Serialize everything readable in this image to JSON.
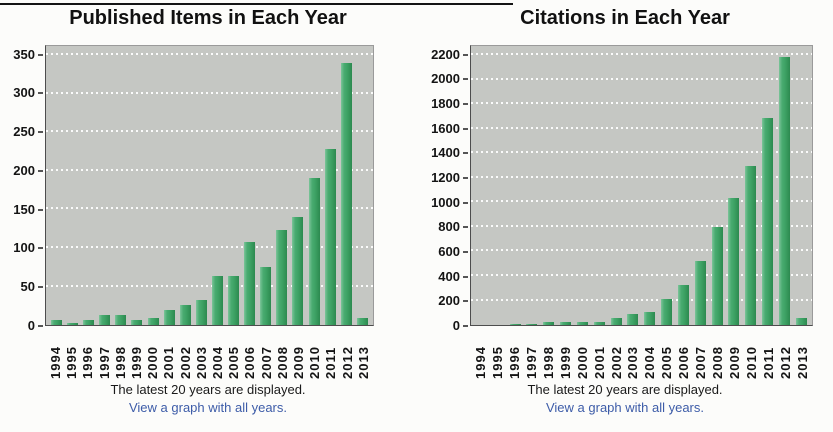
{
  "page": {
    "top_rule_color": "#141414",
    "background": "#FCFCFA"
  },
  "colors": {
    "bar": "#3EA265",
    "plot_background": "#C5C7C3",
    "gridline": "#FFFFFF",
    "link": "#3D5CA8",
    "title_text": "#111111"
  },
  "captions": {
    "note": "The latest 20 years are displayed.",
    "link": "View a graph with all years."
  },
  "chart_data": [
    {
      "type": "bar",
      "title": "Published Items in Each Year",
      "xlabel": "",
      "ylabel": "",
      "categories": [
        "1994",
        "1995",
        "1996",
        "1997",
        "1998",
        "1999",
        "2000",
        "2001",
        "2002",
        "2003",
        "2004",
        "2005",
        "2006",
        "2007",
        "2008",
        "2009",
        "2010",
        "2011",
        "2012",
        "2013"
      ],
      "values": [
        7,
        3,
        6,
        13,
        13,
        7,
        9,
        20,
        26,
        32,
        63,
        63,
        108,
        75,
        123,
        140,
        191,
        228,
        340,
        9
      ],
      "ylim": [
        0,
        350
      ],
      "ytick_step": 50,
      "grid": "horizontal-dashed-white",
      "legend": "none",
      "bar_color": "#3EA265"
    },
    {
      "type": "bar",
      "title": "Citations in Each Year",
      "xlabel": "",
      "ylabel": "",
      "categories": [
        "1994",
        "1995",
        "1996",
        "1997",
        "1998",
        "1999",
        "2000",
        "2001",
        "2002",
        "2003",
        "2004",
        "2005",
        "2006",
        "2007",
        "2008",
        "2009",
        "2010",
        "2011",
        "2012",
        "2013"
      ],
      "values": [
        0,
        4,
        12,
        10,
        28,
        28,
        26,
        24,
        55,
        88,
        110,
        210,
        330,
        525,
        800,
        1040,
        1300,
        1690,
        2190,
        55
      ],
      "ylim": [
        0,
        2200
      ],
      "ytick_step": 200,
      "grid": "horizontal-dashed-white",
      "legend": "none",
      "bar_color": "#3EA265"
    }
  ]
}
